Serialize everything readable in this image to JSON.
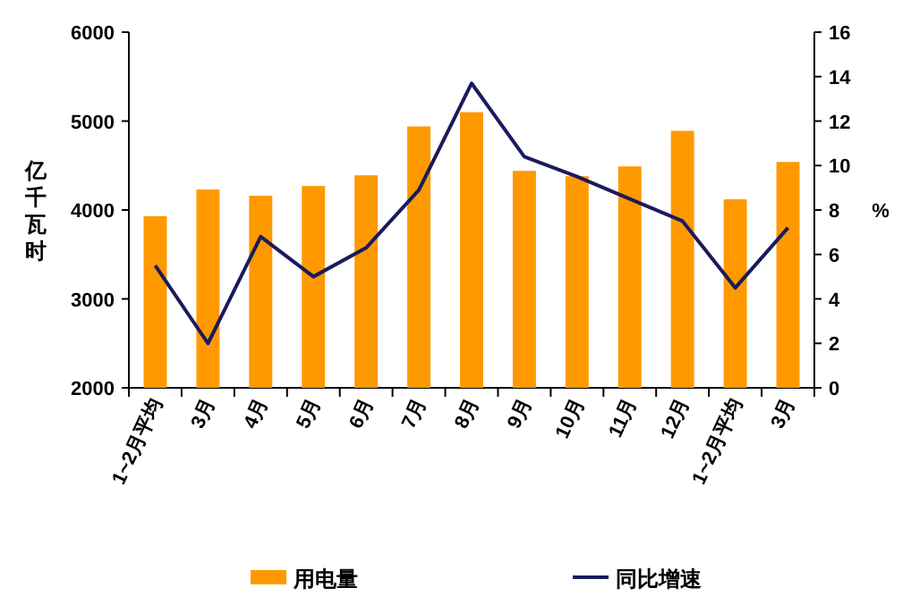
{
  "chart_data": {
    "type": "bar",
    "categories": [
      "1~2月平均",
      "3月",
      "4月",
      "5月",
      "6月",
      "7月",
      "8月",
      "9月",
      "10月",
      "11月",
      "12月",
      "1~2月平均",
      "3月"
    ],
    "series": [
      {
        "name": "用电量",
        "color": "#ff9900",
        "values": [
          3930,
          4230,
          4160,
          4270,
          4390,
          4940,
          5100,
          4440,
          4380,
          4490,
          4890,
          4120,
          4540
        ]
      },
      {
        "name": "同比增速",
        "type": "line",
        "axis": "y2",
        "color": "#1a1a5e",
        "values": [
          5.5,
          2.0,
          6.8,
          5.0,
          6.3,
          8.9,
          13.7,
          10.4,
          9.5,
          8.5,
          7.5,
          4.5,
          7.2
        ]
      }
    ],
    "ylabel": "亿千瓦时",
    "y2label": "%",
    "ylim": [
      2000,
      6000
    ],
    "yticks": [
      2000,
      3000,
      4000,
      5000,
      6000
    ],
    "y2lim": [
      0,
      16
    ],
    "y2ticks": [
      0,
      2,
      4,
      6,
      8,
      10,
      12,
      14,
      16
    ],
    "grid": false,
    "legend": "bottom",
    "marker": "none",
    "line_style": "solid"
  }
}
